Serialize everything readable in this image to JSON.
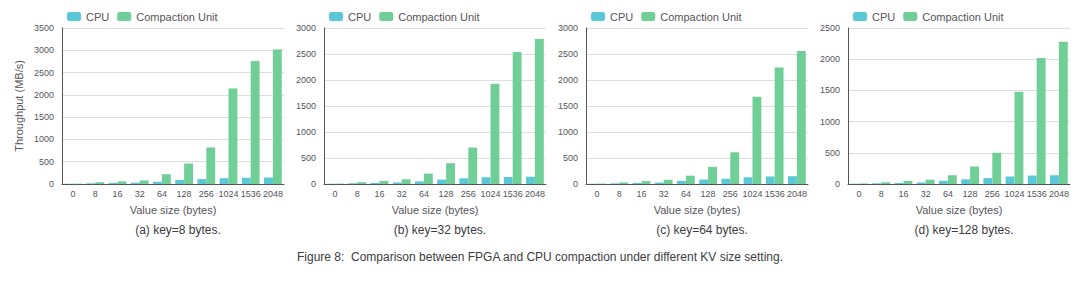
{
  "title": "Figure 8:  Comparison between FPGA and CPU compaction under different KV size setting.",
  "chart_data": [
    {
      "type": "bar",
      "title": "(a) key=8 bytes.",
      "categories": [
        "0",
        "8",
        "16",
        "32",
        "64",
        "128",
        "256",
        "1024",
        "1536",
        "2048"
      ],
      "xlabel": "Value size (bytes)",
      "ylabel": "Throughput (MB/s)",
      "series": [
        {
          "name": "CPU",
          "color": "#5bc8d8",
          "values": [
            5,
            15,
            25,
            30,
            50,
            90,
            110,
            130,
            140,
            145
          ]
        },
        {
          "name": "Compaction Unit",
          "color": "#6fcf97",
          "values": [
            8,
            40,
            60,
            80,
            220,
            460,
            820,
            2140,
            2760,
            3020
          ]
        }
      ],
      "ylim": [
        0,
        3500
      ],
      "yticks": [
        0,
        500,
        1000,
        1500,
        2000,
        2500,
        3000,
        3500
      ],
      "grid": true,
      "legend": "upper left"
    },
    {
      "type": "bar",
      "title": "(b) key=32 bytes.",
      "categories": [
        "0",
        "8",
        "16",
        "32",
        "64",
        "128",
        "256",
        "1024",
        "1536",
        "2048"
      ],
      "xlabel": "Value size (bytes)",
      "series": [
        {
          "name": "CPU",
          "color": "#5bc8d8",
          "values": [
            5,
            15,
            22,
            30,
            50,
            85,
            110,
            130,
            135,
            140
          ]
        },
        {
          "name": "Compaction Unit",
          "color": "#6fcf97",
          "values": [
            8,
            35,
            60,
            90,
            200,
            400,
            700,
            1930,
            2540,
            2790
          ]
        }
      ],
      "ylim": [
        0,
        3000
      ],
      "yticks": [
        0,
        500,
        1000,
        1500,
        2000,
        2500,
        3000
      ],
      "grid": true,
      "legend": "upper left"
    },
    {
      "type": "bar",
      "title": "(c) key=64 bytes.",
      "categories": [
        "0",
        "8",
        "16",
        "32",
        "64",
        "128",
        "256",
        "1024",
        "1536",
        "2048"
      ],
      "xlabel": "Value size (bytes)",
      "series": [
        {
          "name": "CPU",
          "color": "#5bc8d8",
          "values": [
            5,
            12,
            20,
            28,
            60,
            85,
            100,
            130,
            145,
            150
          ]
        },
        {
          "name": "Compaction Unit",
          "color": "#6fcf97",
          "values": [
            8,
            30,
            55,
            80,
            160,
            330,
            610,
            1680,
            2240,
            2560
          ]
        }
      ],
      "ylim": [
        0,
        3000
      ],
      "yticks": [
        0,
        500,
        1000,
        1500,
        2000,
        2500,
        3000
      ],
      "grid": true,
      "legend": "upper left"
    },
    {
      "type": "bar",
      "title": "(d) key=128 bytes.",
      "categories": [
        "0",
        "8",
        "16",
        "32",
        "64",
        "128",
        "256",
        "1024",
        "1536",
        "2048"
      ],
      "xlabel": "Value size (bytes)",
      "series": [
        {
          "name": "CPU",
          "color": "#5bc8d8",
          "values": [
            5,
            12,
            18,
            25,
            50,
            75,
            95,
            120,
            135,
            140
          ]
        },
        {
          "name": "Compaction Unit",
          "color": "#6fcf97",
          "values": [
            8,
            28,
            50,
            70,
            140,
            280,
            500,
            1480,
            2020,
            2280
          ]
        }
      ],
      "ylim": [
        0,
        2500
      ],
      "yticks": [
        0,
        500,
        1000,
        1500,
        2000,
        2500
      ],
      "grid": true,
      "legend": "upper left"
    }
  ]
}
